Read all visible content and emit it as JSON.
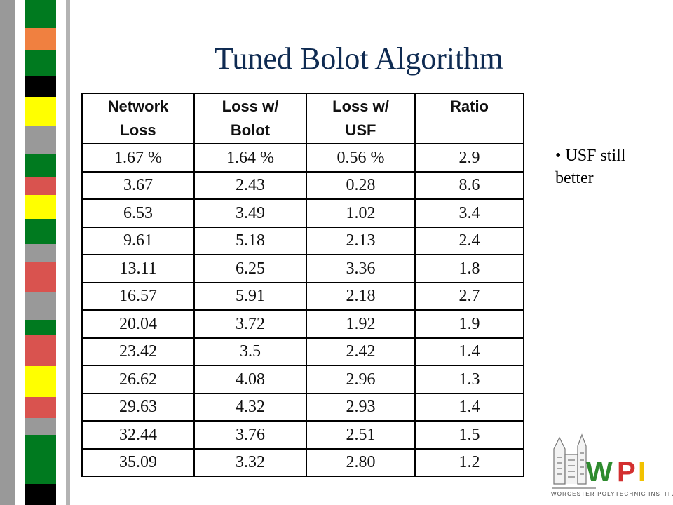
{
  "slide": {
    "title": "Tuned Bolot Algorithm",
    "bullet": "USF still better",
    "bullet_marker": "•"
  },
  "table": {
    "headers": [
      [
        "Network",
        "Loss"
      ],
      [
        "Loss w/",
        "Bolot"
      ],
      [
        "Loss w/",
        "USF"
      ],
      [
        "Ratio"
      ]
    ],
    "rows": [
      [
        "1.67 %",
        "1.64 %",
        "0.56 %",
        "2.9"
      ],
      [
        "3.67",
        "2.43",
        "0.28",
        "8.6"
      ],
      [
        "6.53",
        "3.49",
        "1.02",
        "3.4"
      ],
      [
        "9.61",
        "5.18",
        "2.13",
        "2.4"
      ],
      [
        "13.11",
        "6.25",
        "3.36",
        "1.8"
      ],
      [
        "16.57",
        "5.91",
        "2.18",
        "2.7"
      ],
      [
        "20.04",
        "3.72",
        "1.92",
        "1.9"
      ],
      [
        "23.42",
        "3.5",
        "2.42",
        "1.4"
      ],
      [
        "26.62",
        "4.08",
        "2.96",
        "1.3"
      ],
      [
        "29.63",
        "4.32",
        "2.93",
        "1.4"
      ],
      [
        "32.44",
        "3.76",
        "2.51",
        "1.5"
      ],
      [
        "35.09",
        "3.32",
        "2.80",
        "1.2"
      ]
    ]
  },
  "logo": {
    "letters": [
      "W",
      "P",
      "I"
    ],
    "caption": "WORCESTER POLYTECHNIC INSTITUTE"
  },
  "colors": {
    "title": "#0f2b52",
    "strip_green": "#007a1f",
    "strip_red": "#d9534f",
    "strip_yellow": "#ffff00",
    "strip_orange": "#f08040",
    "strip_black": "#000000",
    "strip_gray": "#999999",
    "logo_green": "#2e8b2e",
    "logo_red": "#d32f2f",
    "logo_yellow": "#f2c200"
  }
}
